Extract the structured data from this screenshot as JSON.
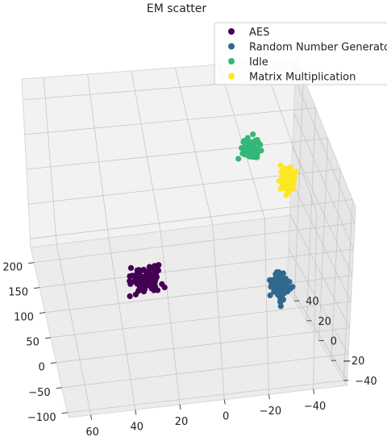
{
  "chart_data": {
    "type": "scatter",
    "projection": "3d",
    "title": "EM scatter",
    "xlabel": "",
    "ylabel": "",
    "zlabel": "",
    "xlim": [
      -55,
      70
    ],
    "ylim": [
      -110,
      230
    ],
    "zlim": [
      -45,
      52
    ],
    "x_ticks": [
      "60",
      "40",
      "20",
      "0",
      "−20",
      "−40"
    ],
    "x_tick_values": [
      60,
      40,
      20,
      0,
      -20,
      -40
    ],
    "y_ticks": [
      "200",
      "150",
      "100",
      "50",
      "0",
      "−50",
      "−100"
    ],
    "y_tick_values": [
      200,
      150,
      100,
      50,
      0,
      -50,
      -100
    ],
    "z_ticks": [
      "40",
      "20",
      "0",
      "−20",
      "−40"
    ],
    "z_tick_values": [
      40,
      20,
      0,
      -20,
      -40
    ],
    "grid": true,
    "legend_position": "top-right",
    "series": [
      {
        "name": "AES",
        "color": "#440154",
        "n_points": 110,
        "center": {
          "x": 28,
          "y": 110,
          "z": -35
        },
        "spread": {
          "x": 8,
          "y": 30,
          "z": 4
        }
      },
      {
        "name": "Random Number Generator",
        "color": "#31688e",
        "n_points": 110,
        "center": {
          "x": -35,
          "y": -10,
          "z": 0
        },
        "spread": {
          "x": 5,
          "y": 30,
          "z": 4
        }
      },
      {
        "name": "Idle",
        "color": "#35b779",
        "n_points": 80,
        "center": {
          "x": -25,
          "y": 200,
          "z": 10
        },
        "spread": {
          "x": 5,
          "y": 20,
          "z": 3
        }
      },
      {
        "name": "Matrix Multiplication",
        "color": "#fde725",
        "n_points": 80,
        "center": {
          "x": -45,
          "y": 110,
          "z": 25
        },
        "spread": {
          "x": 4,
          "y": 25,
          "z": 8
        }
      }
    ]
  }
}
